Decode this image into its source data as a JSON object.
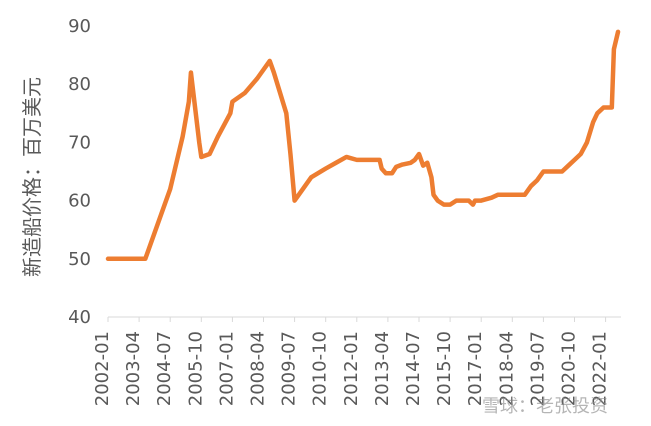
{
  "chart_data": {
    "type": "line",
    "title": "",
    "xlabel": "",
    "ylabel": "新造船价格：百万美元",
    "ylim": [
      40,
      90
    ],
    "yticks": [
      40,
      50,
      60,
      70,
      80,
      90
    ],
    "xtick_labels": [
      "2002-01",
      "2003-04",
      "2004-07",
      "2005-10",
      "2007-01",
      "2008-04",
      "2009-07",
      "2010-10",
      "2012-01",
      "2013-04",
      "2014-07",
      "2015-10",
      "2017-01",
      "2018-04",
      "2019-07",
      "2020-10",
      "2022-01"
    ],
    "grid": false,
    "legend": "none",
    "colors": {
      "series": "#ED7D31",
      "text": "#595959",
      "axis": "#D9D9D9"
    },
    "series": [
      {
        "points": [
          [
            "2002-01",
            50
          ],
          [
            "2003-07",
            50
          ],
          [
            "2004-01",
            56
          ],
          [
            "2004-07",
            62
          ],
          [
            "2005-01",
            71
          ],
          [
            "2005-04",
            77
          ],
          [
            "2005-05",
            82
          ],
          [
            "2005-07",
            76
          ],
          [
            "2005-09",
            70
          ],
          [
            "2005-10",
            67.5
          ],
          [
            "2006-02",
            68
          ],
          [
            "2006-06",
            71
          ],
          [
            "2006-12",
            75
          ],
          [
            "2007-01",
            77
          ],
          [
            "2007-07",
            78.5
          ],
          [
            "2008-01",
            81
          ],
          [
            "2008-07",
            84
          ],
          [
            "2008-09",
            82
          ],
          [
            "2009-03",
            75
          ],
          [
            "2009-05",
            68
          ],
          [
            "2009-07",
            60
          ],
          [
            "2009-09",
            61
          ],
          [
            "2010-03",
            64
          ],
          [
            "2010-10",
            65.5
          ],
          [
            "2011-03",
            66.5
          ],
          [
            "2011-08",
            67.5
          ],
          [
            "2012-01",
            67
          ],
          [
            "2012-07",
            67
          ],
          [
            "2012-12",
            67
          ],
          [
            "2013-01",
            65.5
          ],
          [
            "2013-03",
            64.7
          ],
          [
            "2013-06",
            64.7
          ],
          [
            "2013-08",
            65.8
          ],
          [
            "2013-11",
            66.2
          ],
          [
            "2014-03",
            66.5
          ],
          [
            "2014-05",
            67
          ],
          [
            "2014-07",
            68
          ],
          [
            "2014-09",
            66
          ],
          [
            "2014-11",
            66.5
          ],
          [
            "2015-01",
            64
          ],
          [
            "2015-02",
            61
          ],
          [
            "2015-04",
            60
          ],
          [
            "2015-07",
            59.3
          ],
          [
            "2015-10",
            59.3
          ],
          [
            "2016-01",
            60
          ],
          [
            "2016-07",
            60
          ],
          [
            "2016-09",
            59.3
          ],
          [
            "2016-10",
            60
          ],
          [
            "2017-01",
            60
          ],
          [
            "2017-06",
            60.5
          ],
          [
            "2017-09",
            61
          ],
          [
            "2018-04",
            61
          ],
          [
            "2018-10",
            61
          ],
          [
            "2019-01",
            62.5
          ],
          [
            "2019-04",
            63.5
          ],
          [
            "2019-07",
            65
          ],
          [
            "2020-01",
            65
          ],
          [
            "2020-04",
            65
          ],
          [
            "2020-07",
            66
          ],
          [
            "2020-10",
            67
          ],
          [
            "2021-01",
            68
          ],
          [
            "2021-04",
            70
          ],
          [
            "2021-07",
            73.5
          ],
          [
            "2021-09",
            75
          ],
          [
            "2021-12",
            76
          ],
          [
            "2022-01",
            76
          ],
          [
            "2022-04",
            76
          ],
          [
            "2022-05",
            86
          ],
          [
            "2022-07",
            89
          ]
        ]
      }
    ]
  }
}
